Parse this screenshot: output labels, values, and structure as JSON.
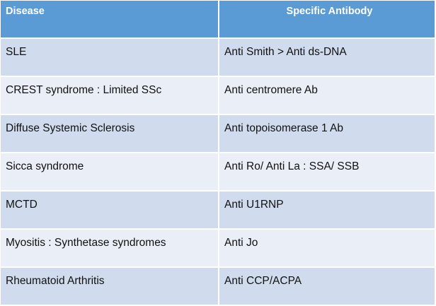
{
  "table": {
    "headers": [
      "Disease",
      "Specific Antibody"
    ],
    "rows": [
      [
        "SLE",
        "Anti Smith > Anti ds-DNA"
      ],
      [
        "CREST syndrome : Limited SSc",
        "Anti centromere Ab"
      ],
      [
        "Diffuse Systemic Sclerosis",
        "Anti topoisomerase 1 Ab"
      ],
      [
        "Sicca syndrome",
        "Anti Ro/ Anti La : SSA/ SSB"
      ],
      [
        "MCTD",
        "Anti U1RNP"
      ],
      [
        "Myositis : Synthetase syndromes",
        "Anti Jo"
      ],
      [
        "Rheumatoid Arthritis",
        "Anti CCP/ACPA"
      ]
    ],
    "colors": {
      "header_bg": "#5b9bd5",
      "header_text": "#ffffff",
      "row_band_dark": "#d0dcee",
      "row_band_light": "#e9eef7"
    }
  }
}
